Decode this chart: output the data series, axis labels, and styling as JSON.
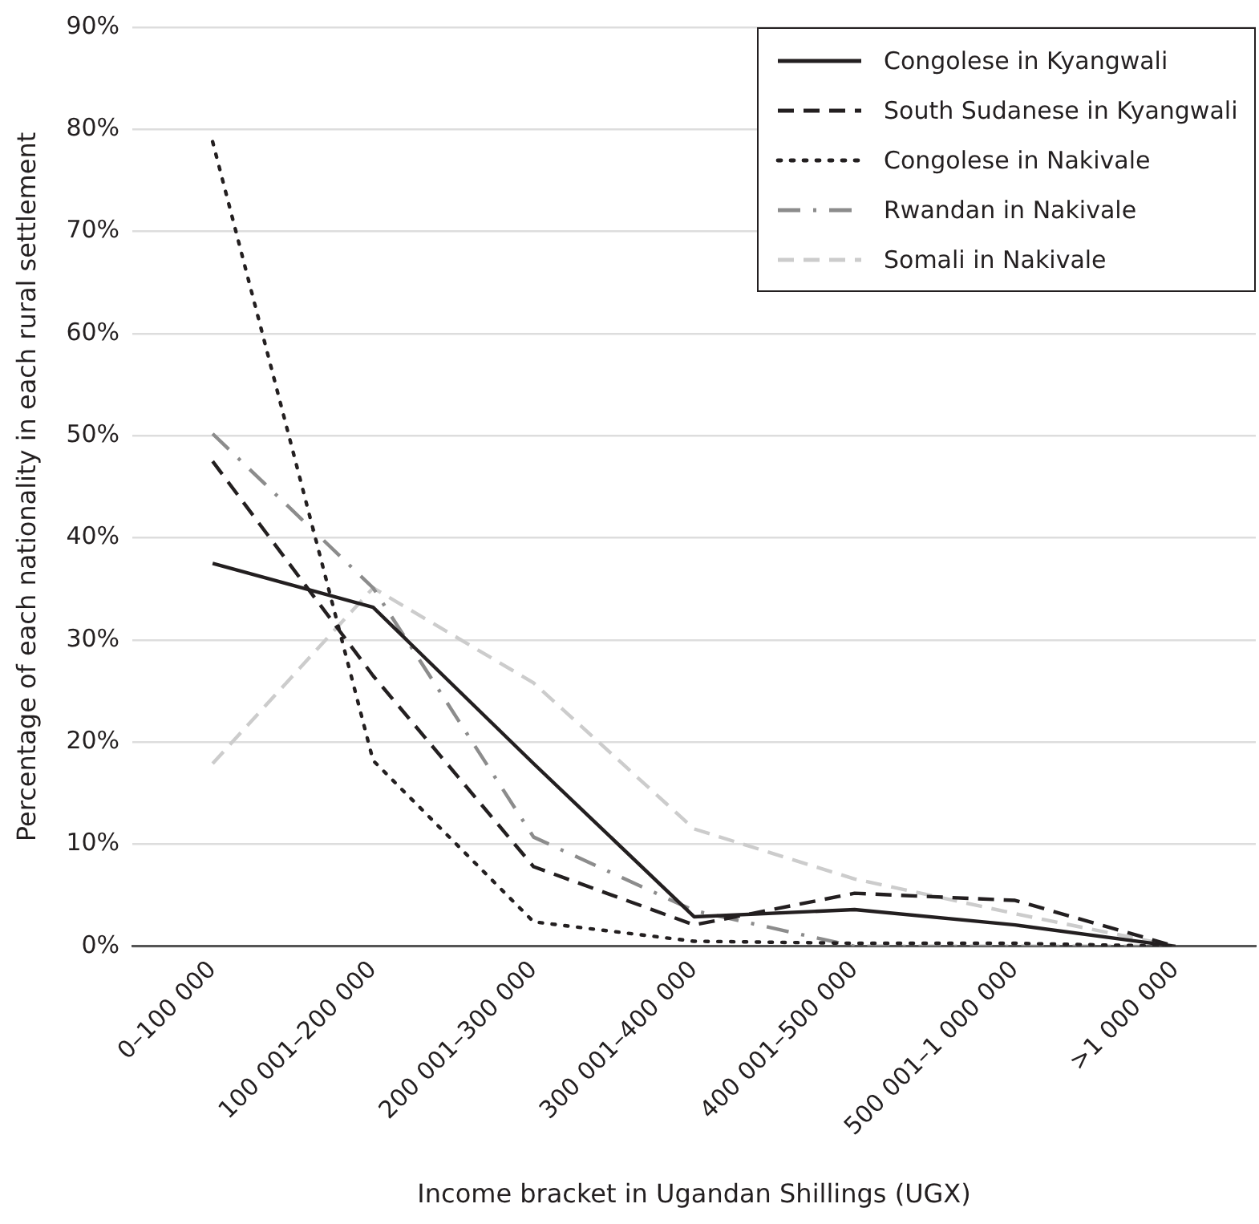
{
  "chart_data": {
    "type": "line",
    "xlabel": "Income bracket in Ugandan Shillings (UGX)",
    "ylabel": "Percentage of each nationality in each rural settlement",
    "categories": [
      "0–100 000",
      "100 001–200 000",
      "200 001–300 000",
      "300 001–400 000",
      "400 001–500 000",
      "500 001–1 000 000",
      ">1 000 000"
    ],
    "ylim": [
      0,
      90
    ],
    "yticks": [
      {
        "value": 0,
        "label": "0%"
      },
      {
        "value": 10,
        "label": "10%"
      },
      {
        "value": 20,
        "label": "20%"
      },
      {
        "value": 30,
        "label": "30%"
      },
      {
        "value": 40,
        "label": "40%"
      },
      {
        "value": 50,
        "label": "50%"
      },
      {
        "value": 60,
        "label": "60%"
      },
      {
        "value": 70,
        "label": "70%"
      },
      {
        "value": 80,
        "label": "80%"
      },
      {
        "value": 90,
        "label": "90%"
      }
    ],
    "grid": "y",
    "legend": "top right",
    "marker": "none",
    "series": [
      {
        "name": "Congolese in Kyangwali",
        "color": "#231f20",
        "line_style": "solid",
        "values": [
          37.5,
          33.2,
          17.9,
          2.9,
          3.6,
          2.1,
          0
        ]
      },
      {
        "name": "South Sudanese in Kyangwali",
        "color": "#231f20",
        "line_style": "dashed",
        "values": [
          47.5,
          26.5,
          7.8,
          2.1,
          5.2,
          4.5,
          0
        ]
      },
      {
        "name": "Congolese in Nakivale",
        "color": "#231f20",
        "line_style": "dotted",
        "values": [
          78.8,
          18.2,
          2.4,
          0.5,
          0.3,
          0.3,
          0
        ]
      },
      {
        "name": "Rwandan in Nakivale",
        "color": "#8c8c8c",
        "line_style": "dashdot",
        "values": [
          50.2,
          35.1,
          10.7,
          3.5,
          0,
          0,
          0
        ]
      },
      {
        "name": "Somali in Nakivale",
        "color": "#cccccc",
        "line_style": "dashed",
        "values": [
          17.9,
          35.1,
          25.8,
          11.5,
          6.6,
          3.2,
          0
        ]
      }
    ]
  }
}
